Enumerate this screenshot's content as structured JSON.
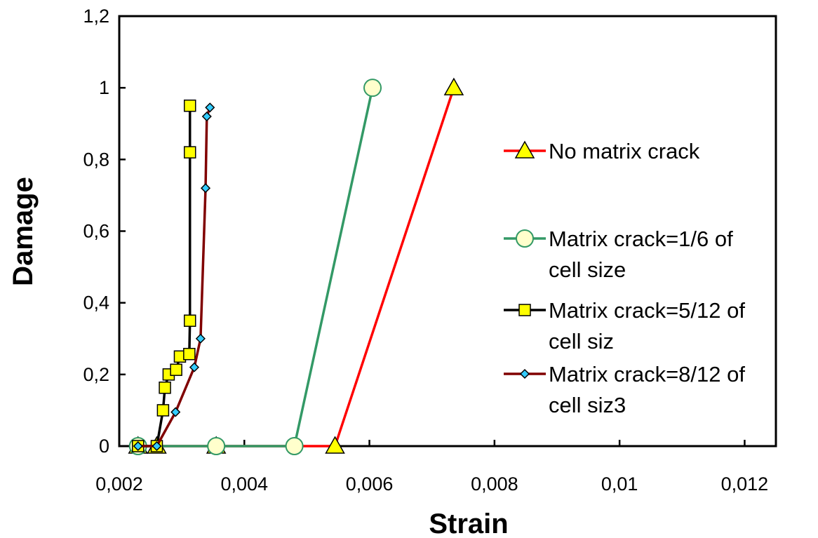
{
  "chart_data": {
    "type": "line",
    "title": "",
    "xlabel": "Strain",
    "ylabel": "Damage",
    "xlim": [
      0.002,
      0.0125
    ],
    "ylim": [
      0,
      1.2
    ],
    "x_ticks": [
      {
        "value": 0.002,
        "label": "0,002"
      },
      {
        "value": 0.004,
        "label": "0,004"
      },
      {
        "value": 0.006,
        "label": "0,006"
      },
      {
        "value": 0.008,
        "label": "0,008"
      },
      {
        "value": 0.01,
        "label": "0,01"
      },
      {
        "value": 0.012,
        "label": "0,012"
      }
    ],
    "y_ticks": [
      {
        "value": 0,
        "label": "0"
      },
      {
        "value": 0.2,
        "label": "0,2"
      },
      {
        "value": 0.4,
        "label": "0,4"
      },
      {
        "value": 0.6,
        "label": "0,6"
      },
      {
        "value": 0.8,
        "label": "0,8"
      },
      {
        "value": 1,
        "label": "1"
      },
      {
        "value": 1.2,
        "label": "1,2"
      }
    ],
    "grid": false,
    "legend_position": "right",
    "series": [
      {
        "name": "No matrix crack",
        "color": "#ff0000",
        "marker": "triangle",
        "marker_fill": "#ffff00",
        "points": [
          {
            "x": 0.0023,
            "y": 0
          },
          {
            "x": 0.0026,
            "y": 0
          },
          {
            "x": 0.00355,
            "y": 0
          },
          {
            "x": 0.00545,
            "y": 0
          },
          {
            "x": 0.00735,
            "y": 1
          }
        ]
      },
      {
        "name": "Matrix crack=1/6 of cell size",
        "legend_lines": [
          "Matrix crack=1/6 of",
          "cell size"
        ],
        "color": "#339966",
        "marker": "circle",
        "marker_fill": "#ffffcc",
        "points": [
          {
            "x": 0.0023,
            "y": 0
          },
          {
            "x": 0.00355,
            "y": 0
          },
          {
            "x": 0.0048,
            "y": 0
          },
          {
            "x": 0.00605,
            "y": 1
          }
        ]
      },
      {
        "name": "Matrix crack=5/12 of cell siz",
        "legend_lines": [
          "Matrix crack=5/12 of",
          "cell siz"
        ],
        "color": "#000000",
        "marker": "square",
        "marker_fill": "#ffff00",
        "points": [
          {
            "x": 0.0023,
            "y": 0
          },
          {
            "x": 0.0026,
            "y": 0
          },
          {
            "x": 0.0027,
            "y": 0.1
          },
          {
            "x": 0.00273,
            "y": 0.163
          },
          {
            "x": 0.00279,
            "y": 0.2
          },
          {
            "x": 0.00291,
            "y": 0.213
          },
          {
            "x": 0.00297,
            "y": 0.25
          },
          {
            "x": 0.00312,
            "y": 0.257
          },
          {
            "x": 0.00313,
            "y": 0.35
          },
          {
            "x": 0.00313,
            "y": 0.82
          },
          {
            "x": 0.00313,
            "y": 0.95
          }
        ]
      },
      {
        "name": "Matrix crack=8/12 of cell siz3",
        "legend_lines": [
          "Matrix crack=8/12 of",
          "cell siz3"
        ],
        "color": "#800000",
        "marker": "diamond",
        "marker_fill": "#33ccff",
        "points": [
          {
            "x": 0.0023,
            "y": 0
          },
          {
            "x": 0.0026,
            "y": 0
          },
          {
            "x": 0.0029,
            "y": 0.095
          },
          {
            "x": 0.0032,
            "y": 0.22
          },
          {
            "x": 0.0033,
            "y": 0.3
          },
          {
            "x": 0.00338,
            "y": 0.72
          },
          {
            "x": 0.0034,
            "y": 0.92
          },
          {
            "x": 0.00345,
            "y": 0.945
          }
        ]
      }
    ]
  }
}
